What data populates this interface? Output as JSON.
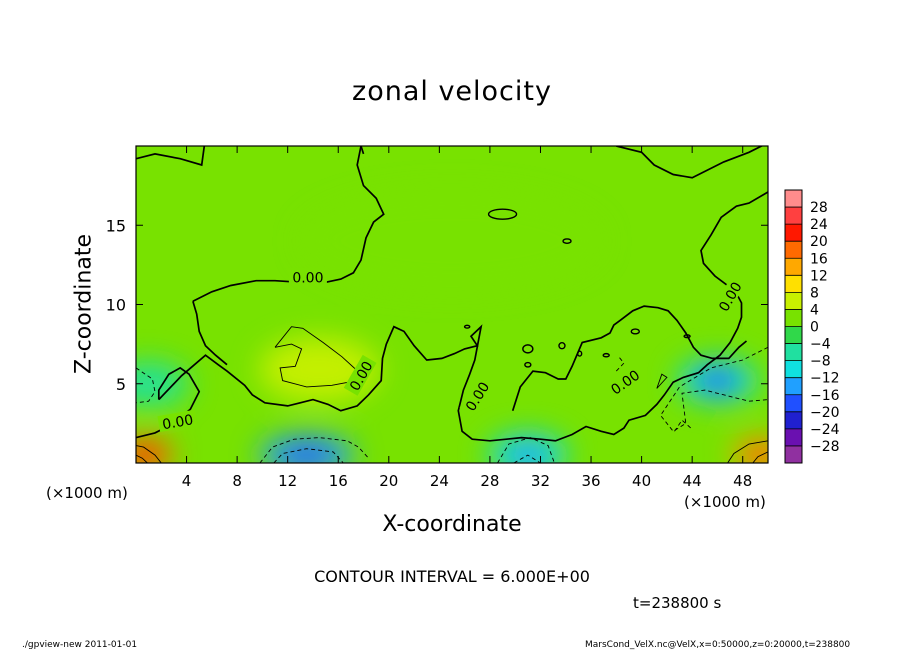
{
  "chart_data": {
    "type": "heatmap",
    "title": "zonal velocity",
    "xlabel": "X-coordinate",
    "ylabel": "Z-coordinate",
    "x_unit": "(×1000 m)",
    "xlim": [
      0,
      50
    ],
    "ylim": [
      0,
      20
    ],
    "x_ticks": [
      4,
      8,
      12,
      16,
      20,
      24,
      28,
      32,
      36,
      40,
      44,
      48
    ],
    "y_ticks": [
      5,
      10,
      15
    ],
    "x_tick_labels": [
      "4",
      "8",
      "12",
      "16",
      "20",
      "24",
      "28",
      "32",
      "36",
      "40",
      "44",
      "48"
    ],
    "y_tick_labels": [
      "5",
      "10",
      "15"
    ],
    "colorbar": {
      "levels": [
        28,
        24,
        20,
        16,
        12,
        8,
        4,
        0,
        -4,
        -8,
        -12,
        -16,
        -20,
        -24,
        -28
      ],
      "labels": [
        "28",
        "24",
        "20",
        "16",
        "12",
        "8",
        "4",
        "0",
        "−4",
        "−8",
        "−12",
        "−16",
        "−20",
        "−24",
        "−28"
      ],
      "colors": [
        "#ff8c8c",
        "#ff4040",
        "#ff1800",
        "#ff6a00",
        "#ffa800",
        "#ffe000",
        "#c8f000",
        "#78e200",
        "#30d84a",
        "#20e0a0",
        "#10e0e0",
        "#20a0ff",
        "#2050ff",
        "#2020d0",
        "#6a10b0",
        "#9030a0"
      ]
    },
    "contour_labels": [
      {
        "text": "0.00",
        "x": 13.6,
        "z": 11.7,
        "angle": 0
      },
      {
        "text": "0.00",
        "x": 17.8,
        "z": 5.5,
        "angle": -60
      },
      {
        "text": "0.00",
        "x": 27.0,
        "z": 4.2,
        "angle": -58
      },
      {
        "text": "0.00",
        "x": 38.7,
        "z": 5.1,
        "angle": -35
      },
      {
        "text": "0.00",
        "x": 47.0,
        "z": 10.5,
        "angle": -60
      },
      {
        "text": "0.00",
        "x": 3.3,
        "z": 2.6,
        "angle": -10
      }
    ],
    "field_features": [
      {
        "kind": "positive",
        "x": 14.5,
        "z": 5.9,
        "value": 6
      },
      {
        "kind": "negative",
        "x": 13.5,
        "z": 0.5,
        "value": -12
      },
      {
        "kind": "negative",
        "x": 31.0,
        "z": 0.5,
        "value": -9
      },
      {
        "kind": "negative",
        "x": 46.0,
        "z": 5.2,
        "value": -10
      },
      {
        "kind": "negative",
        "x": 1.0,
        "z": 5.0,
        "value": -6
      },
      {
        "kind": "positive",
        "x": 0.7,
        "z": 0.5,
        "value": 18
      },
      {
        "kind": "positive",
        "x": 49.4,
        "z": 0.5,
        "value": 16
      }
    ]
  },
  "annotations": {
    "contour_interval": "CONTOUR INTERVAL = 6.000E+00",
    "time": "t=238800 s",
    "footer_left": "./gpview-new  2011-01-01",
    "footer_right": "MarsCond_VelX.nc@VelX,x=0:50000,z=0:20000,t=238800"
  }
}
